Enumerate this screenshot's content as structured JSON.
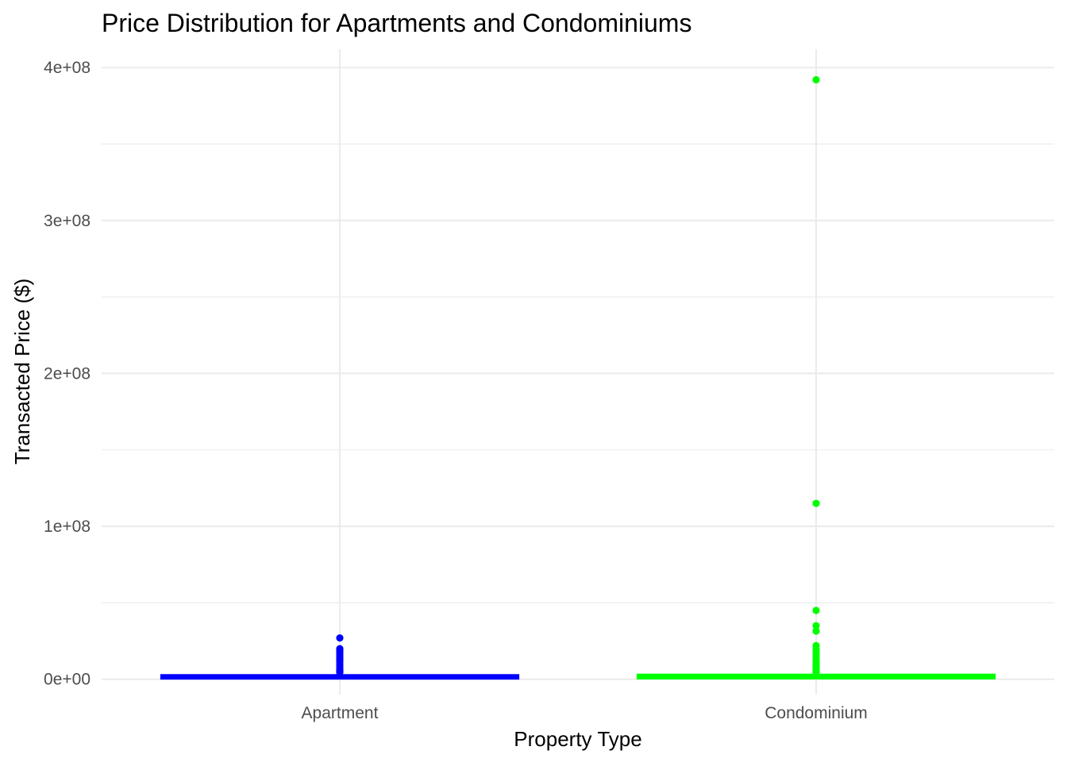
{
  "chart_data": {
    "type": "box",
    "title": "Price Distribution for Apartments and Condominiums",
    "xlabel": "Property Type",
    "ylabel": "Transacted Price ($)",
    "categories": [
      "Apartment",
      "Condominium"
    ],
    "ylim": [
      -10000000,
      412000000
    ],
    "yticks": [
      {
        "value": 0,
        "label": "0e+00"
      },
      {
        "value": 100000000,
        "label": "1e+08"
      },
      {
        "value": 200000000,
        "label": "2e+08"
      },
      {
        "value": 300000000,
        "label": "3e+08"
      },
      {
        "value": 400000000,
        "label": "4e+08"
      }
    ],
    "grid": true,
    "legend": "none",
    "series": [
      {
        "category": "Apartment",
        "color": "#0000FF",
        "q1": 1100000,
        "median": 1500000,
        "q3": 2000000,
        "whisker_low": 0,
        "whisker_high": 3300000,
        "outliers": [
          27000000,
          20000000,
          18500000,
          17000000,
          15500000,
          14000000,
          12500000,
          11000000,
          9500000,
          8000000,
          6500000,
          5500000,
          4500000
        ]
      },
      {
        "category": "Condominium",
        "color": "#00FF00",
        "q1": 1200000,
        "median": 1700000,
        "q3": 2300000,
        "whisker_low": 0,
        "whisker_high": 3900000,
        "outliers": [
          392000000,
          115000000,
          45000000,
          35000000,
          31500000,
          22000000,
          20000000,
          18000000,
          16000000,
          14000000,
          12000000,
          10500000,
          9000000,
          7500000,
          6000000,
          5000000,
          4200000
        ]
      }
    ]
  }
}
